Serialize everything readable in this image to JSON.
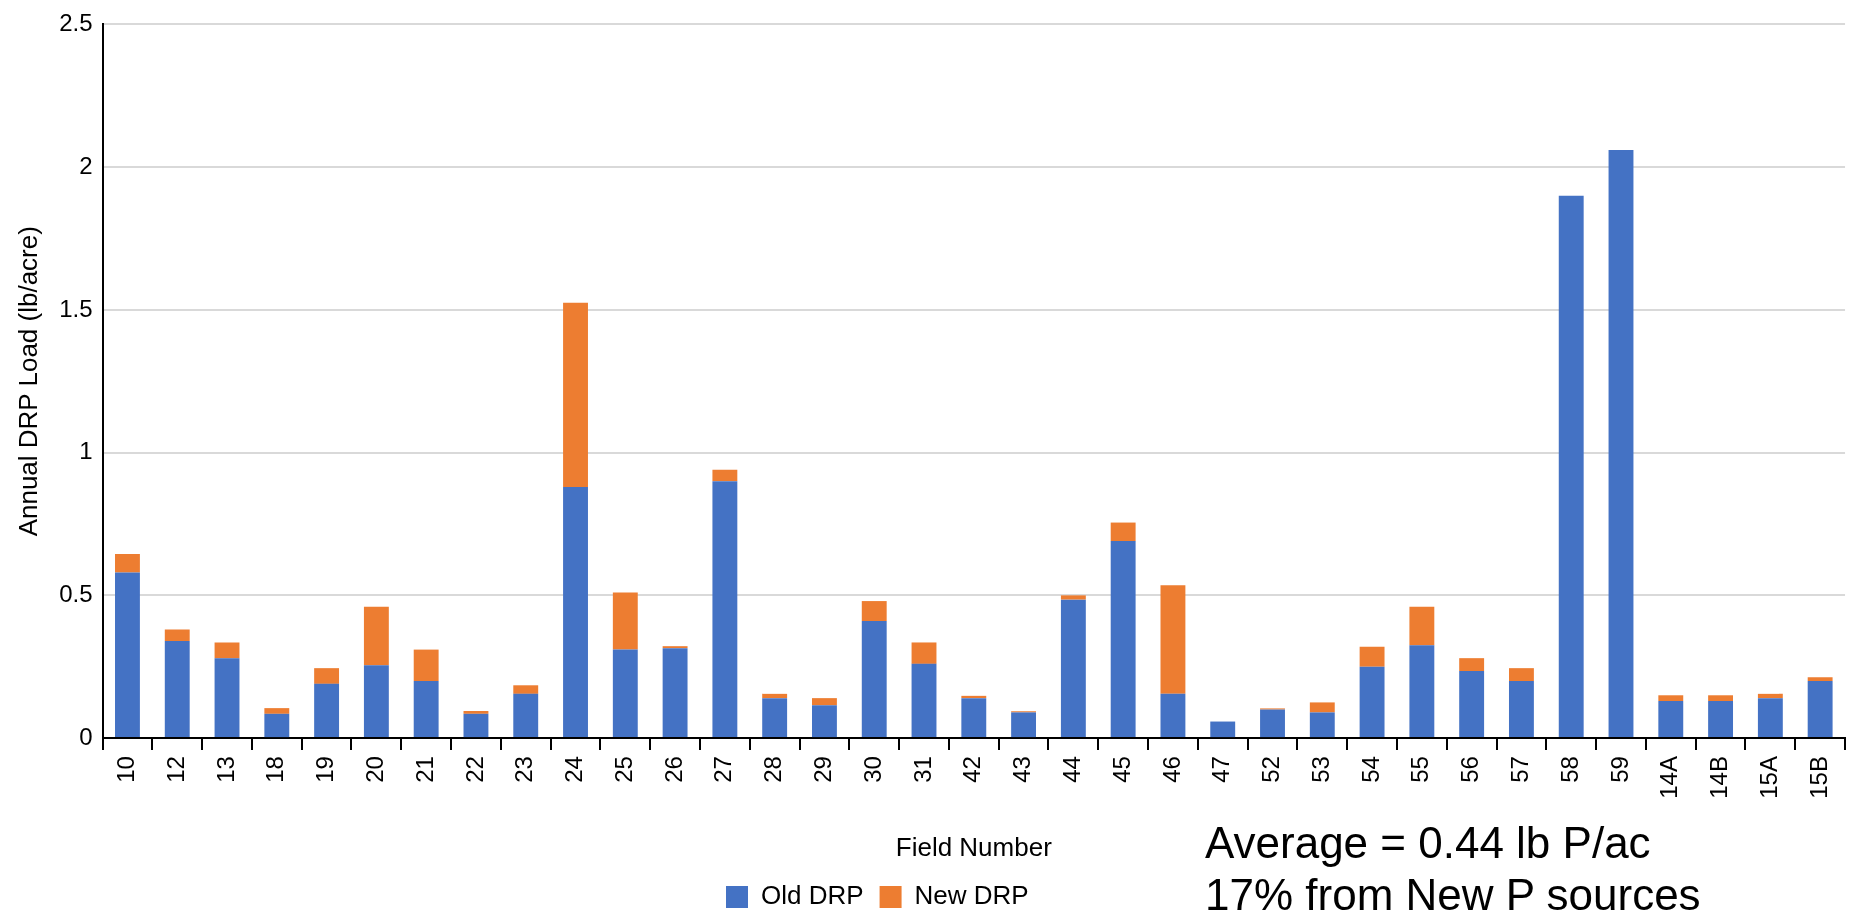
{
  "chart_data": {
    "type": "bar",
    "stacked": true,
    "xlabel": "Field Number",
    "ylabel": "Annual DRP Load (lb/acre)",
    "categories": [
      "10",
      "12",
      "13",
      "18",
      "19",
      "20",
      "21",
      "22",
      "23",
      "24",
      "25",
      "26",
      "27",
      "28",
      "29",
      "30",
      "31",
      "42",
      "43",
      "44",
      "45",
      "46",
      "47",
      "52",
      "53",
      "54",
      "55",
      "56",
      "57",
      "58",
      "59",
      "14A",
      "14B",
      "15A",
      "15B"
    ],
    "series": [
      {
        "name": "Old DRP",
        "color": "#4472c4",
        "values": [
          0.58,
          0.34,
          0.28,
          0.085,
          0.19,
          0.255,
          0.2,
          0.085,
          0.155,
          0.88,
          0.31,
          0.315,
          0.9,
          0.14,
          0.115,
          0.41,
          0.26,
          0.14,
          0.09,
          0.485,
          0.69,
          0.155,
          0.058,
          0.1,
          0.09,
          0.25,
          0.325,
          0.235,
          0.2,
          1.9,
          2.06,
          0.13,
          0.13,
          0.14,
          0.2
        ]
      },
      {
        "name": "New DRP",
        "color": "#ed7d31",
        "values": [
          0.065,
          0.04,
          0.055,
          0.02,
          0.055,
          0.205,
          0.11,
          0.01,
          0.03,
          0.645,
          0.2,
          0.007,
          0.04,
          0.015,
          0.025,
          0.07,
          0.075,
          0.008,
          0.004,
          0.015,
          0.065,
          0.38,
          0,
          0.004,
          0.035,
          0.07,
          0.135,
          0.045,
          0.045,
          0,
          0,
          0.02,
          0.02,
          0.015,
          0.013
        ]
      }
    ],
    "ylim": [
      0,
      2.5
    ],
    "yticks": [
      0,
      0.5,
      1,
      1.5,
      2,
      2.5
    ],
    "grid": "y",
    "legend": "bottom",
    "annotations": [
      "Average = 0.44 lb P/ac",
      "17% from New P sources"
    ]
  }
}
